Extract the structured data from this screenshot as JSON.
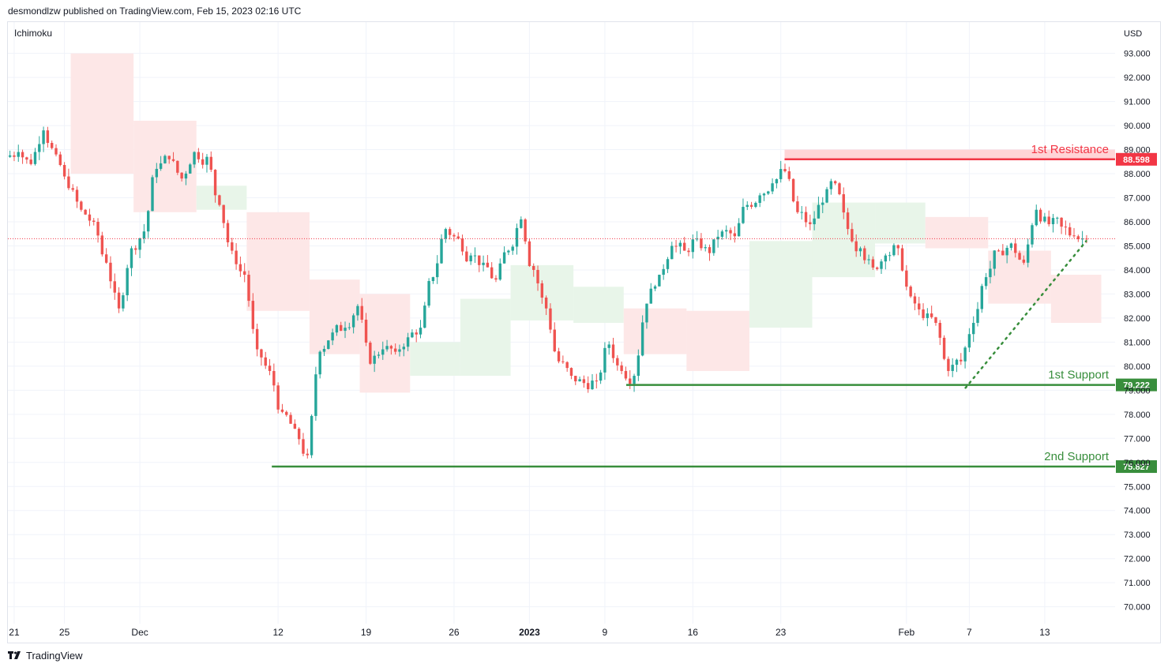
{
  "header": {
    "published_by": "desmondlzw published on TradingView.com, Feb 15, 2023 02:16 UTC"
  },
  "indicator_label": "Ichimoku",
  "currency_label": "USD",
  "footer": {
    "brand": "TradingView",
    "logo_icon": "tradingview-logo-icon"
  },
  "colors": {
    "up": "#26a69a",
    "down": "#ef5350",
    "resistance": "#f23645",
    "resistance_zone": "#ffd4d6",
    "support": "#388e3c",
    "cloud_bull": "#e8f5e9",
    "cloud_bear": "#fde7e7",
    "grid": "#f0f3fa",
    "price_line": "#f23645"
  },
  "chart_data": {
    "type": "candlestick",
    "title": "",
    "ylabel": "USD",
    "ylim": [
      69.3,
      94.3
    ],
    "y_ticks": [
      "70.000",
      "71.000",
      "72.000",
      "73.000",
      "74.000",
      "75.000",
      "76.000",
      "77.000",
      "78.000",
      "79.000",
      "80.000",
      "81.000",
      "82.000",
      "83.000",
      "84.000",
      "85.000",
      "86.000",
      "87.000",
      "88.000",
      "89.000",
      "90.000",
      "91.000",
      "92.000",
      "93.000"
    ],
    "x_tick_labels": [
      {
        "label": "21",
        "t": 0
      },
      {
        "label": "25",
        "t": 4
      },
      {
        "label": "Dec",
        "t": 10
      },
      {
        "label": "12",
        "t": 21
      },
      {
        "label": "19",
        "t": 28
      },
      {
        "label": "26",
        "t": 35
      },
      {
        "label": "2023",
        "t": 41
      },
      {
        "label": "9",
        "t": 47
      },
      {
        "label": "16",
        "t": 54
      },
      {
        "label": "23",
        "t": 61
      },
      {
        "label": "Feb",
        "t": 71
      },
      {
        "label": "7",
        "t": 76
      },
      {
        "label": "13",
        "t": 82
      }
    ],
    "x_range": [
      -0.5,
      87.6
    ],
    "daily_closes": [
      88.9,
      88.4,
      89.8,
      88.8,
      87.4,
      86.5,
      86.0,
      84.3,
      82.4,
      84.9,
      85.6,
      88.2,
      88.6,
      87.8,
      88.9,
      88.7,
      86.7,
      84.8,
      83.8,
      80.7,
      79.8,
      78.1,
      77.4,
      76.3,
      80.6,
      81.4,
      81.6,
      82.5,
      80.1,
      80.7,
      80.6,
      81.2,
      81.6,
      83.7,
      85.7,
      85.3,
      84.6,
      84.3,
      83.6,
      84.8,
      86.1,
      84.0,
      82.4,
      80.2,
      79.6,
      79.3,
      79.4,
      80.9,
      79.8,
      79.6,
      82.6,
      83.8,
      85.0,
      84.8,
      85.3,
      84.7,
      85.6,
      85.4,
      86.7,
      87.1,
      87.6,
      88.1,
      86.4,
      85.9,
      86.8,
      87.6,
      85.7,
      84.9,
      84.1,
      84.6,
      84.9,
      82.9,
      82.0,
      81.8,
      79.8,
      80.2,
      81.8,
      83.7,
      84.8,
      85.1,
      84.3,
      86.5,
      85.9,
      85.8,
      85.4,
      85.3
    ],
    "series": [
      {
        "name": "Price",
        "current_price": 85.3
      }
    ],
    "annotations": [
      {
        "text": "1st Resistance",
        "value": 88.598,
        "label": "88.598",
        "kind": "resistance",
        "from_t": 61.3
      },
      {
        "text": "1st Support",
        "value": 79.222,
        "label": "79.222",
        "kind": "support",
        "from_t": 48.7
      },
      {
        "text": "2nd Support",
        "value": 75.827,
        "label": "75.827",
        "kind": "support",
        "from_t": 20.5
      }
    ],
    "trendline": {
      "from": {
        "t": 75.7,
        "v": 79.1
      },
      "to": {
        "t": 85.3,
        "v": 85.2
      },
      "style": "dotted"
    },
    "ichimoku_cloud": [
      {
        "from_t": 4.5,
        "to_t": 9.5,
        "top": 93.0,
        "bottom": 88.0,
        "kind": "bear"
      },
      {
        "from_t": 9.5,
        "to_t": 14.5,
        "top": 90.2,
        "bottom": 86.4,
        "kind": "bear"
      },
      {
        "from_t": 14.5,
        "to_t": 18.5,
        "top": 87.5,
        "bottom": 86.5,
        "kind": "bull"
      },
      {
        "from_t": 18.5,
        "to_t": 23.5,
        "top": 86.4,
        "bottom": 82.3,
        "kind": "bear"
      },
      {
        "from_t": 23.5,
        "to_t": 27.5,
        "top": 83.6,
        "bottom": 80.5,
        "kind": "bear"
      },
      {
        "from_t": 27.5,
        "to_t": 31.5,
        "top": 83.0,
        "bottom": 78.9,
        "kind": "bear"
      },
      {
        "from_t": 31.5,
        "to_t": 35.5,
        "top": 81.0,
        "bottom": 79.6,
        "kind": "bull"
      },
      {
        "from_t": 35.5,
        "to_t": 39.5,
        "top": 82.8,
        "bottom": 79.6,
        "kind": "bull"
      },
      {
        "from_t": 39.5,
        "to_t": 44.5,
        "top": 84.2,
        "bottom": 81.9,
        "kind": "bull"
      },
      {
        "from_t": 44.5,
        "to_t": 48.5,
        "top": 83.3,
        "bottom": 81.8,
        "kind": "bull"
      },
      {
        "from_t": 48.5,
        "to_t": 53.5,
        "top": 82.4,
        "bottom": 80.5,
        "kind": "bear"
      },
      {
        "from_t": 53.5,
        "to_t": 58.5,
        "top": 82.3,
        "bottom": 79.8,
        "kind": "bear"
      },
      {
        "from_t": 58.5,
        "to_t": 63.5,
        "top": 85.2,
        "bottom": 81.6,
        "kind": "bull"
      },
      {
        "from_t": 63.5,
        "to_t": 68.5,
        "top": 86.8,
        "bottom": 83.7,
        "kind": "bull"
      },
      {
        "from_t": 68.5,
        "to_t": 72.5,
        "top": 86.8,
        "bottom": 85.1,
        "kind": "bull"
      },
      {
        "from_t": 72.5,
        "to_t": 77.5,
        "top": 86.2,
        "bottom": 84.9,
        "kind": "bear"
      },
      {
        "from_t": 77.5,
        "to_t": 82.5,
        "top": 84.8,
        "bottom": 82.6,
        "kind": "bear"
      },
      {
        "from_t": 82.5,
        "to_t": 86.5,
        "top": 83.8,
        "bottom": 81.8,
        "kind": "bear"
      }
    ]
  }
}
